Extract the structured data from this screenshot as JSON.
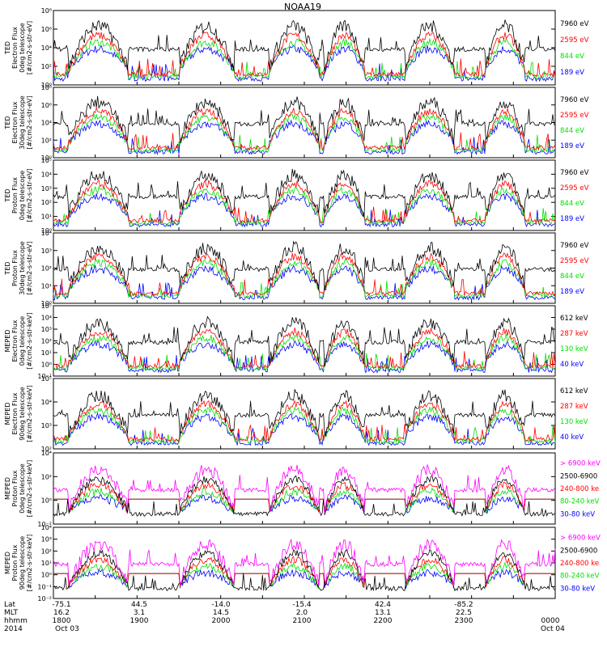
{
  "colors": {
    "blue": "#0000ff",
    "red": "#ff0000",
    "green": "#00e000",
    "black": "#000000",
    "magenta": "#ff00ff",
    "axis": "#000000"
  },
  "chart_data": {
    "type": "line",
    "title": "NOAA19",
    "x_ticks": {
      "lat": [
        "-75.1",
        "44.5",
        "-14.0",
        "-15.4",
        "42.4",
        "-85.2"
      ],
      "mlt": [
        "16.2",
        "3.1",
        "14.5",
        "2.0",
        "13.1",
        "22.5"
      ],
      "hhmm": [
        "1800",
        "1900",
        "2000",
        "2100",
        "2200",
        "2300",
        "0000"
      ],
      "date": [
        "Oct 03",
        "Oct 04"
      ]
    },
    "x_row_labels": [
      "Lat",
      "MLT",
      "hhmm",
      "2014"
    ],
    "panels": [
      {
        "ylabel": [
          "TED",
          "Electron Flux",
          "0deg telescope",
          "[#/cm2-s-str-eV]"
        ],
        "yticks": [
          "10⁰",
          "10²",
          "10⁴",
          "10⁶",
          "10⁸"
        ],
        "legend": [
          {
            "label": "7960 eV",
            "color": "black"
          },
          {
            "label": "2595 eV",
            "color": "red"
          },
          {
            "label": "844 eV",
            "color": "green"
          },
          {
            "label": "189 eV",
            "color": "blue"
          }
        ]
      },
      {
        "ylabel": [
          "TED",
          "Electron Flux",
          "30deg telescope",
          "[#/cm2-s-str-eV]"
        ],
        "yticks": [
          "10⁰",
          "10²",
          "10⁴",
          "10⁶",
          "10⁸"
        ],
        "legend": [
          {
            "label": "7960 eV",
            "color": "black"
          },
          {
            "label": "2595 eV",
            "color": "red"
          },
          {
            "label": "844 eV",
            "color": "green"
          },
          {
            "label": "189 eV",
            "color": "blue"
          }
        ]
      },
      {
        "ylabel": [
          "TED",
          "Proton Flux",
          "0deg telescope",
          "[#/cm2-s-str-eV]"
        ],
        "yticks": [
          "10⁰",
          "10¹",
          "10²",
          "10³",
          "10⁴",
          "10⁵"
        ],
        "legend": [
          {
            "label": "7960 eV",
            "color": "black"
          },
          {
            "label": "2595 eV",
            "color": "red"
          },
          {
            "label": "844 eV",
            "color": "green"
          },
          {
            "label": "189 eV",
            "color": "blue"
          }
        ]
      },
      {
        "ylabel": [
          "TED",
          "Proton Flux",
          "30deg telescope",
          "[#/cm2-s-str-eV]"
        ],
        "yticks": [
          "10⁰",
          "10¹",
          "10²",
          "10³",
          "10⁴"
        ],
        "legend": [
          {
            "label": "7960 eV",
            "color": "black"
          },
          {
            "label": "2595 eV",
            "color": "red"
          },
          {
            "label": "844 eV",
            "color": "green"
          },
          {
            "label": "189 eV",
            "color": "blue"
          }
        ]
      },
      {
        "ylabel": [
          "MEPED",
          "Electron Flux",
          "0deg telescope",
          "[#/cm2-s-str-keV]"
        ],
        "yticks": [
          "10⁻¹",
          "10⁰",
          "10¹",
          "10²",
          "10³",
          "10⁴",
          "10⁵"
        ],
        "legend": [
          {
            "label": "612 keV",
            "color": "black"
          },
          {
            "label": "287 keV",
            "color": "red"
          },
          {
            "label": "130 keV",
            "color": "green"
          },
          {
            "label": "40 keV",
            "color": "blue"
          }
        ]
      },
      {
        "ylabel": [
          "MEPED",
          "Electron Flux",
          "90deg telescope",
          "[#/cm2-s-str-keV]"
        ],
        "yticks": [
          "10²",
          "10³",
          "10⁴",
          "10⁵"
        ],
        "legend": [
          {
            "label": "612 keV",
            "color": "black"
          },
          {
            "label": "287 keV",
            "color": "red"
          },
          {
            "label": "130 keV",
            "color": "green"
          },
          {
            "label": "40 keV",
            "color": "blue"
          }
        ]
      },
      {
        "ylabel": [
          "MEPED",
          "Proton Flux",
          "0deg telescope",
          "[#/cm2-s-str-keV]"
        ],
        "yticks": [
          "10⁻²",
          "10⁰",
          "10²",
          "10⁴"
        ],
        "legend": [
          {
            "label": "> 6900 keV",
            "color": "magenta"
          },
          {
            "label": "2500-6900",
            "color": "black"
          },
          {
            "label": "240-800 ke",
            "color": "red"
          },
          {
            "label": "80-240 keV",
            "color": "green"
          },
          {
            "label": "30-80 keV",
            "color": "blue"
          }
        ]
      },
      {
        "ylabel": [
          "MEPED",
          "Proton Flux",
          "90deg telescope",
          "[#/cm2-s-str-keV]"
        ],
        "yticks": [
          "10⁻²",
          "10⁻¹",
          "10⁰",
          "10¹",
          "10²",
          "10³",
          "10⁴"
        ],
        "legend": [
          {
            "label": "> 6900 keV",
            "color": "magenta"
          },
          {
            "label": "2500-6900",
            "color": "black"
          },
          {
            "label": "240-800 ke",
            "color": "red"
          },
          {
            "label": "80-240 keV",
            "color": "green"
          },
          {
            "label": "30-80 keV",
            "color": "blue"
          }
        ]
      }
    ]
  }
}
